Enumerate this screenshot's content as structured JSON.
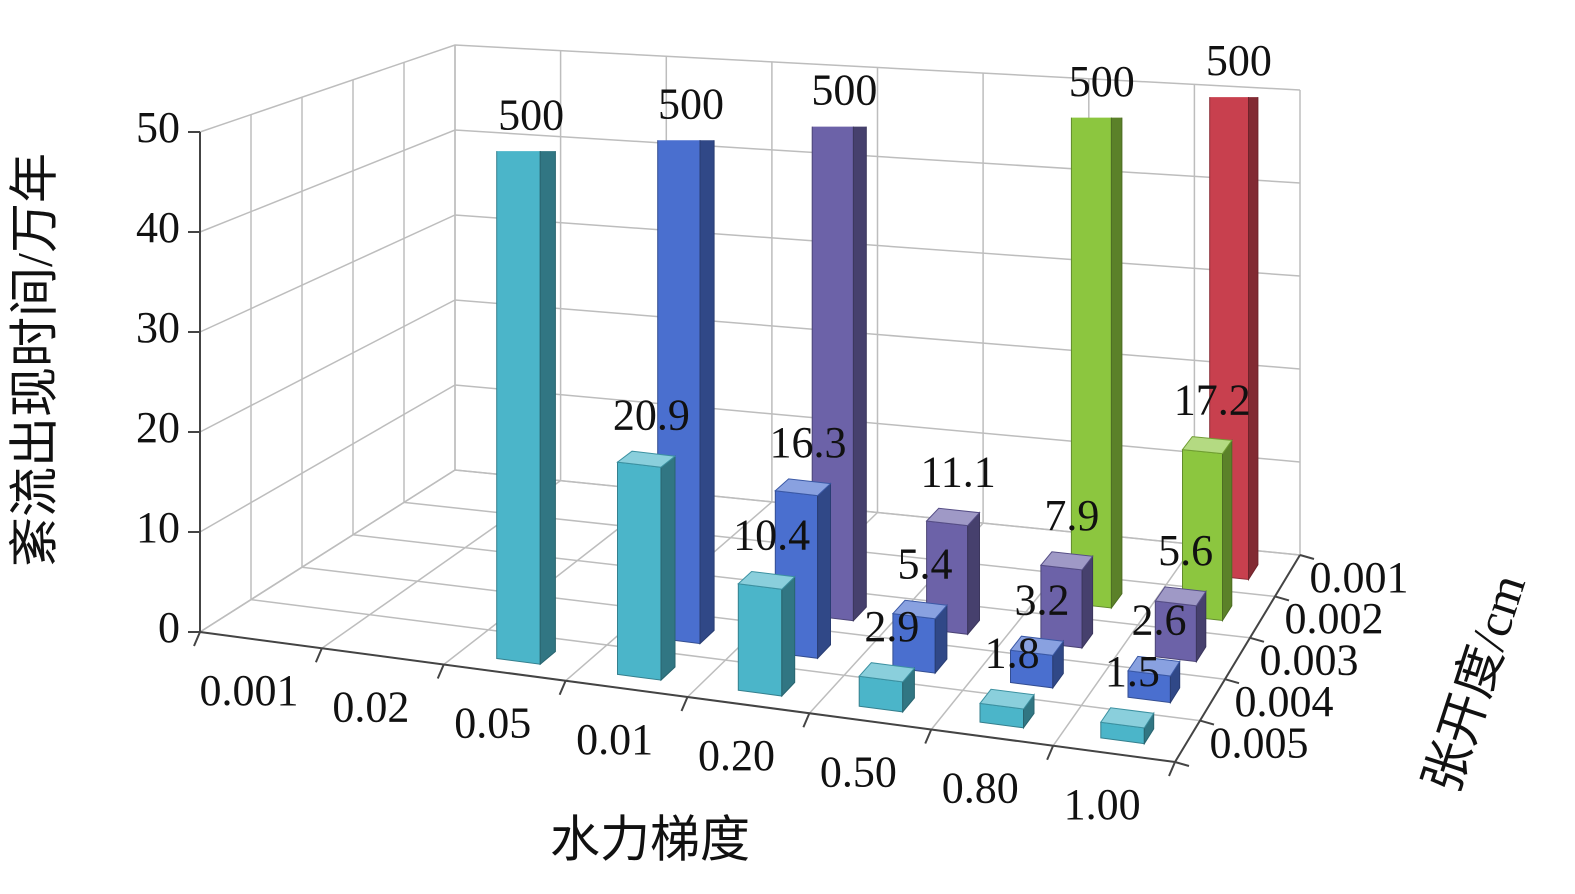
{
  "chart_data": {
    "type": "bar3d",
    "y_label": "紊流出现时间/万年",
    "x_label": "水力梯度",
    "z_label": "张开度/cm",
    "categories": [
      "0.001",
      "0.02",
      "0.05",
      "0.01",
      "0.20",
      "0.50",
      "0.80",
      "1.00"
    ],
    "series": [
      {
        "name": "0.001",
        "color": "#c8404e",
        "values": [
          null,
          null,
          null,
          null,
          null,
          null,
          null,
          500
        ]
      },
      {
        "name": "0.002",
        "color": "#8cc63f",
        "values": [
          null,
          null,
          null,
          null,
          null,
          null,
          500,
          17.2
        ]
      },
      {
        "name": "0.003",
        "color": "#6c62a8",
        "values": [
          null,
          null,
          null,
          null,
          500,
          11.1,
          7.9,
          5.6
        ]
      },
      {
        "name": "0.004",
        "color": "#4a6fcf",
        "values": [
          null,
          null,
          null,
          500,
          16.3,
          5.4,
          3.2,
          2.6
        ]
      },
      {
        "name": "0.005",
        "color": "#4bb5c9",
        "values": [
          null,
          null,
          500,
          20.9,
          10.4,
          2.9,
          1.8,
          1.5
        ]
      }
    ],
    "ylim": [
      0,
      50
    ],
    "yticks": [
      0,
      10,
      20,
      30,
      40,
      50
    ],
    "grid": true
  }
}
